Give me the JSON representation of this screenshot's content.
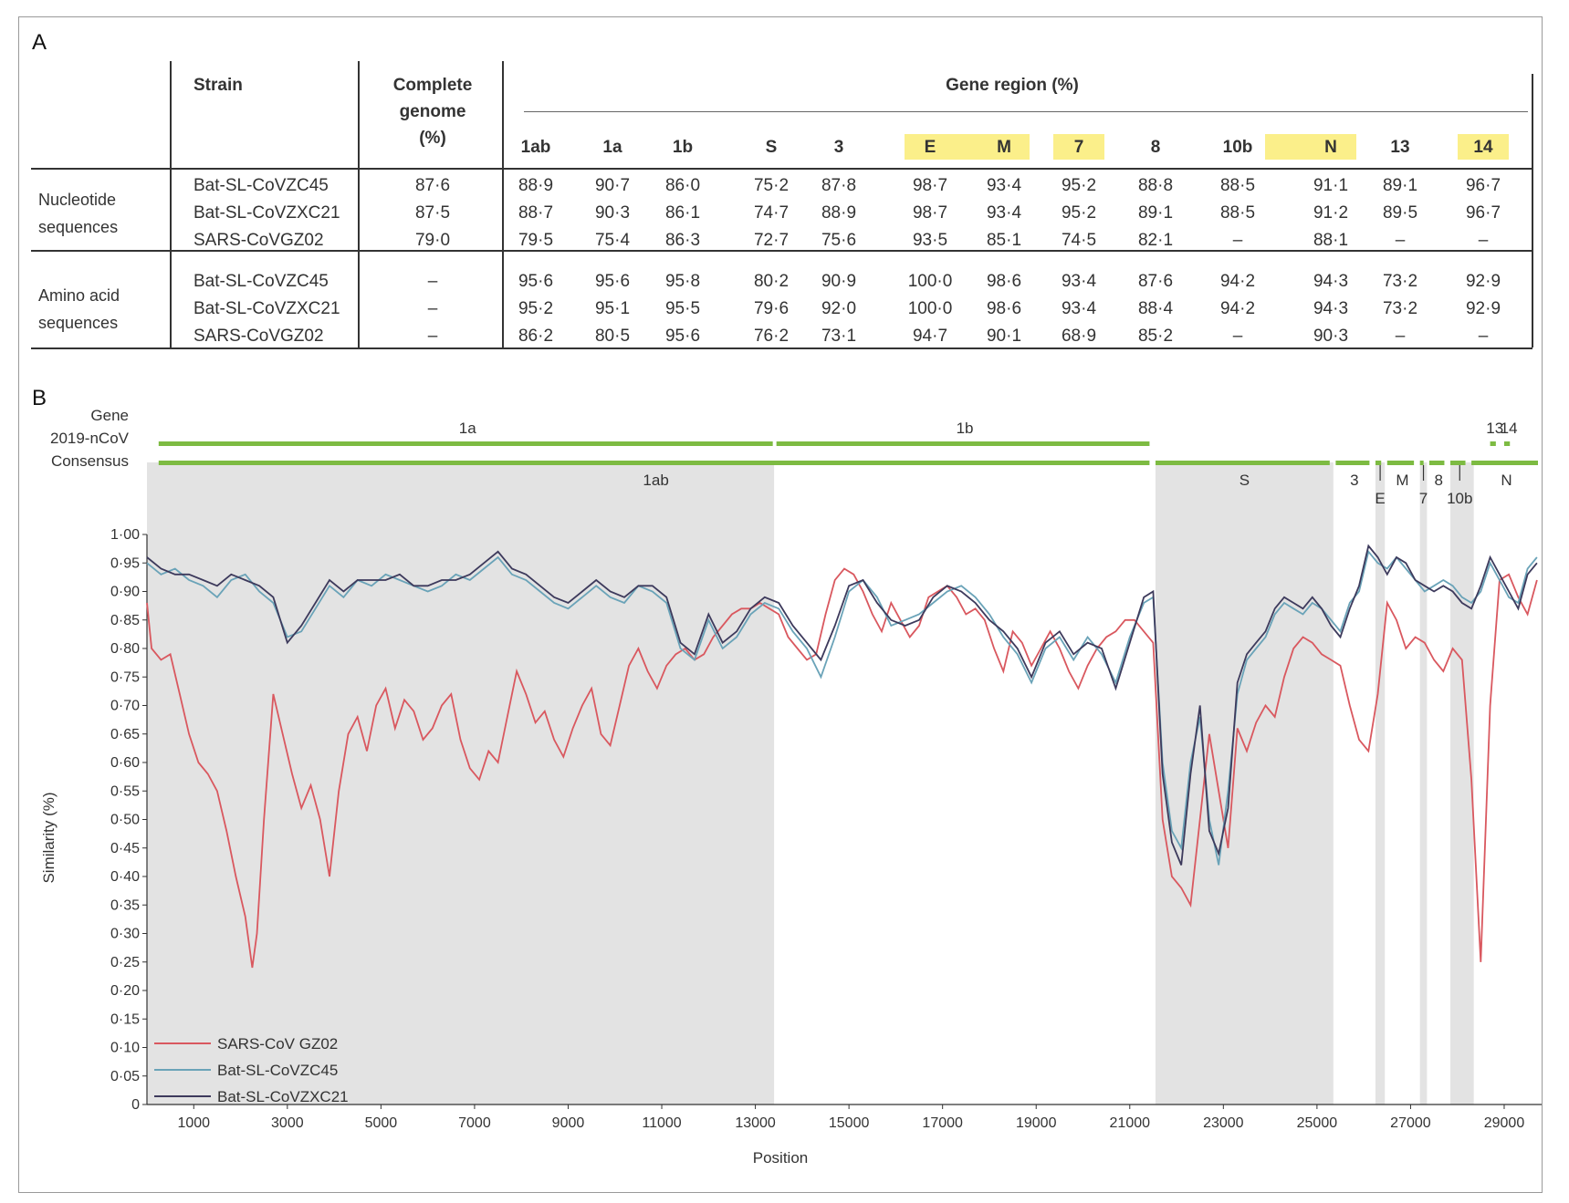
{
  "panel_a_label": "A",
  "panel_b_label": "B",
  "table": {
    "col_strain": "Strain",
    "col_genome": [
      "Complete",
      "genome",
      "(%)"
    ],
    "col_gene_region": "Gene region (%)",
    "gene_columns": [
      "1ab",
      "1a",
      "1b",
      "S",
      "3",
      "E",
      "M",
      "7",
      "8",
      "10b",
      "N",
      "13",
      "14"
    ],
    "highlighted_columns": [
      "E",
      "M",
      "7",
      "N",
      "14"
    ],
    "groups": [
      {
        "label": [
          "Nucleotide",
          "sequences"
        ],
        "rows": [
          {
            "strain": "Bat-SL-CoVZC45",
            "genome": "87·6",
            "values": [
              "88·9",
              "90·7",
              "86·0",
              "75·2",
              "87·8",
              "98·7",
              "93·4",
              "95·2",
              "88·8",
              "88·5",
              "91·1",
              "89·1",
              "96·7"
            ]
          },
          {
            "strain": "Bat-SL-CoVZXC21",
            "genome": "87·5",
            "values": [
              "88·7",
              "90·3",
              "86·1",
              "74·7",
              "88·9",
              "98·7",
              "93·4",
              "95·2",
              "89·1",
              "88·5",
              "91·2",
              "89·5",
              "96·7"
            ]
          },
          {
            "strain": "SARS-CoVGZ02",
            "genome": "79·0",
            "values": [
              "79·5",
              "75·4",
              "86·3",
              "72·7",
              "75·6",
              "93·5",
              "85·1",
              "74·5",
              "82·1",
              "–",
              "88·1",
              "–",
              "–"
            ]
          }
        ]
      },
      {
        "label": [
          "Amino acid",
          "sequences"
        ],
        "rows": [
          {
            "strain": "Bat-SL-CoVZC45",
            "genome": "–",
            "values": [
              "95·6",
              "95·6",
              "95·8",
              "80·2",
              "90·9",
              "100·0",
              "98·6",
              "93·4",
              "87·6",
              "94·2",
              "94·3",
              "73·2",
              "92·9"
            ]
          },
          {
            "strain": "Bat-SL-CoVZXC21",
            "genome": "–",
            "values": [
              "95·2",
              "95·1",
              "95·5",
              "79·6",
              "92·0",
              "100·0",
              "98·6",
              "93·4",
              "88·4",
              "94·2",
              "94·3",
              "73·2",
              "92·9"
            ]
          },
          {
            "strain": "SARS-CoVGZ02",
            "genome": "–",
            "values": [
              "86·2",
              "80·5",
              "95·6",
              "76·2",
              "73·1",
              "94·7",
              "90·1",
              "68·9",
              "85·2",
              "–",
              "90·3",
              "–",
              "–"
            ]
          }
        ]
      }
    ]
  },
  "chart_data": {
    "type": "line",
    "xlabel": "Position",
    "ylabel": "Similarity (%)",
    "xlim": [
      0,
      29800
    ],
    "ylim": [
      0,
      1.0
    ],
    "xticks": [
      1000,
      3000,
      5000,
      7000,
      9000,
      11000,
      13000,
      15000,
      17000,
      19000,
      21000,
      23000,
      25000,
      27000,
      29000
    ],
    "xtick_labels": [
      "1000",
      "3000",
      "5000",
      "7000",
      "9000",
      "11000",
      "13000",
      "15000",
      "17000",
      "19000",
      "21000",
      "23000",
      "25000",
      "27000",
      "29000"
    ],
    "yticks": [
      0,
      0.05,
      0.1,
      0.15,
      0.2,
      0.25,
      0.3,
      0.35,
      0.4,
      0.45,
      0.5,
      0.55,
      0.6,
      0.65,
      0.7,
      0.75,
      0.8,
      0.85,
      0.9,
      0.95,
      1.0
    ],
    "ytick_labels": [
      "0",
      "0·05",
      "0·10",
      "0·15",
      "0·20",
      "0·25",
      "0·30",
      "0·35",
      "0·40",
      "0·45",
      "0·50",
      "0·55",
      "0·60",
      "0·65",
      "0·70",
      "0·75",
      "0·80",
      "0·85",
      "0·90",
      "0·95",
      "1·00"
    ],
    "track_labels": [
      "Gene",
      "2019-nCoV",
      "Consensus"
    ],
    "genes_2019nCoV": [
      {
        "name": "1a",
        "start": 250,
        "end": 13450
      },
      {
        "name": "1b",
        "start": 13450,
        "end": 21500
      },
      {
        "name": "13",
        "start": 28700,
        "end": 28900
      },
      {
        "name": "14",
        "start": 29000,
        "end": 29200
      }
    ],
    "genes_consensus": [
      {
        "name": "1ab",
        "start": 250,
        "end": 21500
      },
      {
        "name": "S",
        "start": 21550,
        "end": 25350
      },
      {
        "name": "3",
        "start": 25400,
        "end": 26200
      },
      {
        "name": "E",
        "start": 26250,
        "end": 26450
      },
      {
        "name": "M",
        "start": 26500,
        "end": 27150
      },
      {
        "name": "7",
        "start": 27200,
        "end": 27350
      },
      {
        "name": "8",
        "start": 27400,
        "end": 27800
      },
      {
        "name": "10b",
        "start": 27850,
        "end": 28250
      },
      {
        "name": "N",
        "start": 28300,
        "end": 29800
      }
    ],
    "shaded_regions": [
      {
        "start": 0,
        "end": 13400
      },
      {
        "start": 21550,
        "end": 25350
      },
      {
        "start": 26250,
        "end": 26450
      },
      {
        "start": 27200,
        "end": 27350
      },
      {
        "start": 27850,
        "end": 28350
      }
    ],
    "series": [
      {
        "name": "SARS-CoV GZ02",
        "color": "#d9585f",
        "x": [
          0,
          100,
          300,
          500,
          700,
          900,
          1100,
          1300,
          1500,
          1700,
          1900,
          2100,
          2250,
          2350,
          2500,
          2700,
          2900,
          3100,
          3300,
          3500,
          3700,
          3900,
          4100,
          4300,
          4500,
          4700,
          4900,
          5100,
          5300,
          5500,
          5700,
          5900,
          6100,
          6300,
          6500,
          6700,
          6900,
          7100,
          7300,
          7500,
          7700,
          7900,
          8100,
          8300,
          8500,
          8700,
          8900,
          9100,
          9300,
          9500,
          9700,
          9900,
          10100,
          10300,
          10500,
          10700,
          10900,
          11100,
          11300,
          11500,
          11700,
          11900,
          12100,
          12300,
          12500,
          12700,
          12900,
          13100,
          13300,
          13500,
          13700,
          13900,
          14100,
          14300,
          14500,
          14700,
          14900,
          15100,
          15300,
          15500,
          15700,
          15900,
          16100,
          16300,
          16500,
          16700,
          16900,
          17100,
          17300,
          17500,
          17700,
          17900,
          18100,
          18300,
          18500,
          18700,
          18900,
          19100,
          19300,
          19500,
          19700,
          19900,
          20100,
          20300,
          20500,
          20700,
          20900,
          21100,
          21300,
          21500,
          21700,
          21900,
          22100,
          22300,
          22500,
          22700,
          22900,
          23100,
          23300,
          23500,
          23700,
          23900,
          24100,
          24300,
          24500,
          24700,
          24900,
          25100,
          25300,
          25500,
          25700,
          25900,
          26100,
          26300,
          26500,
          26700,
          26900,
          27100,
          27300,
          27500,
          27700,
          27900,
          28100,
          28300,
          28500,
          28700,
          28900,
          29100,
          29300,
          29500,
          29700
        ],
        "y": [
          0.88,
          0.8,
          0.78,
          0.79,
          0.72,
          0.65,
          0.6,
          0.58,
          0.55,
          0.48,
          0.4,
          0.33,
          0.24,
          0.3,
          0.5,
          0.72,
          0.65,
          0.58,
          0.52,
          0.56,
          0.5,
          0.4,
          0.55,
          0.65,
          0.68,
          0.62,
          0.7,
          0.73,
          0.66,
          0.71,
          0.69,
          0.64,
          0.66,
          0.7,
          0.72,
          0.64,
          0.59,
          0.57,
          0.62,
          0.6,
          0.68,
          0.76,
          0.72,
          0.67,
          0.69,
          0.64,
          0.61,
          0.66,
          0.7,
          0.73,
          0.65,
          0.63,
          0.7,
          0.77,
          0.8,
          0.76,
          0.73,
          0.77,
          0.79,
          0.8,
          0.78,
          0.79,
          0.82,
          0.84,
          0.86,
          0.87,
          0.87,
          0.88,
          0.87,
          0.86,
          0.82,
          0.8,
          0.78,
          0.79,
          0.86,
          0.92,
          0.94,
          0.93,
          0.9,
          0.86,
          0.83,
          0.88,
          0.85,
          0.82,
          0.84,
          0.89,
          0.9,
          0.91,
          0.89,
          0.86,
          0.87,
          0.85,
          0.8,
          0.76,
          0.83,
          0.81,
          0.77,
          0.8,
          0.83,
          0.8,
          0.76,
          0.73,
          0.77,
          0.8,
          0.82,
          0.83,
          0.85,
          0.85,
          0.83,
          0.81,
          0.5,
          0.4,
          0.38,
          0.35,
          0.5,
          0.65,
          0.55,
          0.45,
          0.66,
          0.62,
          0.67,
          0.7,
          0.68,
          0.75,
          0.8,
          0.82,
          0.81,
          0.79,
          0.78,
          0.77,
          0.7,
          0.64,
          0.62,
          0.72,
          0.88,
          0.85,
          0.8,
          0.82,
          0.81,
          0.78,
          0.76,
          0.8,
          0.78,
          0.57,
          0.25,
          0.7,
          0.92,
          0.93,
          0.89,
          0.86,
          0.92
        ]
      },
      {
        "name": "Bat-SL-CoVZC45",
        "color": "#6aa3b8",
        "x": [
          0,
          300,
          600,
          900,
          1200,
          1500,
          1800,
          2100,
          2400,
          2700,
          3000,
          3300,
          3600,
          3900,
          4200,
          4500,
          4800,
          5100,
          5400,
          5700,
          6000,
          6300,
          6600,
          6900,
          7200,
          7500,
          7800,
          8100,
          8400,
          8700,
          9000,
          9300,
          9600,
          9900,
          10200,
          10500,
          10800,
          11100,
          11400,
          11700,
          12000,
          12300,
          12600,
          12900,
          13200,
          13500,
          13800,
          14100,
          14400,
          14700,
          15000,
          15300,
          15600,
          15900,
          16200,
          16500,
          16800,
          17100,
          17400,
          17700,
          18000,
          18300,
          18600,
          18900,
          19200,
          19500,
          19800,
          20100,
          20400,
          20700,
          21000,
          21300,
          21500,
          21700,
          21900,
          22100,
          22300,
          22500,
          22700,
          22900,
          23100,
          23300,
          23500,
          23700,
          23900,
          24100,
          24300,
          24500,
          24700,
          24900,
          25100,
          25300,
          25500,
          25700,
          25900,
          26100,
          26300,
          26500,
          26700,
          26900,
          27100,
          27300,
          27500,
          27700,
          27900,
          28100,
          28300,
          28500,
          28700,
          28900,
          29100,
          29300,
          29500,
          29700
        ],
        "y": [
          0.95,
          0.93,
          0.94,
          0.92,
          0.91,
          0.89,
          0.92,
          0.93,
          0.9,
          0.88,
          0.82,
          0.83,
          0.87,
          0.91,
          0.89,
          0.92,
          0.91,
          0.93,
          0.92,
          0.91,
          0.9,
          0.91,
          0.93,
          0.92,
          0.94,
          0.96,
          0.93,
          0.92,
          0.9,
          0.88,
          0.87,
          0.89,
          0.91,
          0.89,
          0.88,
          0.91,
          0.9,
          0.88,
          0.8,
          0.78,
          0.85,
          0.8,
          0.82,
          0.86,
          0.88,
          0.87,
          0.83,
          0.8,
          0.75,
          0.82,
          0.9,
          0.92,
          0.89,
          0.84,
          0.85,
          0.86,
          0.88,
          0.9,
          0.91,
          0.89,
          0.86,
          0.82,
          0.79,
          0.74,
          0.8,
          0.82,
          0.78,
          0.82,
          0.79,
          0.74,
          0.82,
          0.88,
          0.89,
          0.6,
          0.48,
          0.45,
          0.6,
          0.68,
          0.5,
          0.42,
          0.55,
          0.72,
          0.78,
          0.8,
          0.82,
          0.86,
          0.88,
          0.87,
          0.86,
          0.88,
          0.87,
          0.85,
          0.83,
          0.88,
          0.9,
          0.97,
          0.95,
          0.94,
          0.96,
          0.94,
          0.92,
          0.9,
          0.91,
          0.92,
          0.91,
          0.89,
          0.88,
          0.9,
          0.95,
          0.92,
          0.89,
          0.88,
          0.94,
          0.96
        ]
      },
      {
        "name": "Bat-SL-CoVZXC21",
        "color": "#3d3a5c",
        "x": [
          0,
          300,
          600,
          900,
          1200,
          1500,
          1800,
          2100,
          2400,
          2700,
          3000,
          3300,
          3600,
          3900,
          4200,
          4500,
          4800,
          5100,
          5400,
          5700,
          6000,
          6300,
          6600,
          6900,
          7200,
          7500,
          7800,
          8100,
          8400,
          8700,
          9000,
          9300,
          9600,
          9900,
          10200,
          10500,
          10800,
          11100,
          11400,
          11700,
          12000,
          12300,
          12600,
          12900,
          13200,
          13500,
          13800,
          14100,
          14400,
          14700,
          15000,
          15300,
          15600,
          15900,
          16200,
          16500,
          16800,
          17100,
          17400,
          17700,
          18000,
          18300,
          18600,
          18900,
          19200,
          19500,
          19800,
          20100,
          20400,
          20700,
          21000,
          21300,
          21500,
          21700,
          21900,
          22100,
          22300,
          22500,
          22700,
          22900,
          23100,
          23300,
          23500,
          23700,
          23900,
          24100,
          24300,
          24500,
          24700,
          24900,
          25100,
          25300,
          25500,
          25700,
          25900,
          26100,
          26300,
          26500,
          26700,
          26900,
          27100,
          27300,
          27500,
          27700,
          27900,
          28100,
          28300,
          28500,
          28700,
          28900,
          29100,
          29300,
          29500,
          29700
        ],
        "y": [
          0.96,
          0.94,
          0.93,
          0.93,
          0.92,
          0.91,
          0.93,
          0.92,
          0.91,
          0.89,
          0.81,
          0.84,
          0.88,
          0.92,
          0.9,
          0.92,
          0.92,
          0.92,
          0.93,
          0.91,
          0.91,
          0.92,
          0.92,
          0.93,
          0.95,
          0.97,
          0.94,
          0.93,
          0.91,
          0.89,
          0.88,
          0.9,
          0.92,
          0.9,
          0.89,
          0.91,
          0.91,
          0.89,
          0.81,
          0.79,
          0.86,
          0.81,
          0.83,
          0.87,
          0.89,
          0.88,
          0.84,
          0.81,
          0.78,
          0.84,
          0.91,
          0.92,
          0.88,
          0.85,
          0.84,
          0.85,
          0.89,
          0.91,
          0.9,
          0.88,
          0.85,
          0.83,
          0.8,
          0.75,
          0.81,
          0.83,
          0.79,
          0.81,
          0.8,
          0.73,
          0.81,
          0.89,
          0.9,
          0.58,
          0.46,
          0.42,
          0.58,
          0.7,
          0.48,
          0.44,
          0.52,
          0.74,
          0.79,
          0.81,
          0.83,
          0.87,
          0.89,
          0.88,
          0.87,
          0.89,
          0.87,
          0.84,
          0.82,
          0.87,
          0.91,
          0.98,
          0.96,
          0.93,
          0.96,
          0.95,
          0.92,
          0.91,
          0.9,
          0.91,
          0.9,
          0.88,
          0.87,
          0.91,
          0.96,
          0.93,
          0.9,
          0.87,
          0.93,
          0.95
        ]
      }
    ]
  }
}
